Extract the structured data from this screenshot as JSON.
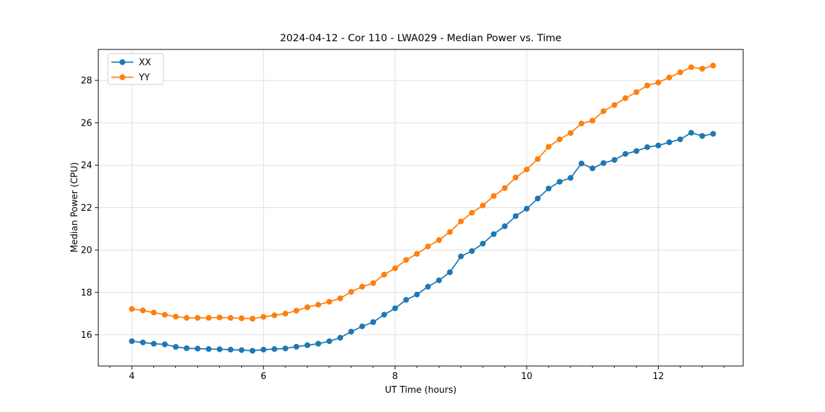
{
  "chart_data": {
    "type": "line",
    "title": "2024-04-12 - Cor 110 - LWA029 - Median Power vs. Time",
    "xlabel": "UT Time (hours)",
    "ylabel": "Median Power (CPU)",
    "xlim": [
      3.49,
      13.29
    ],
    "ylim": [
      14.53,
      29.46
    ],
    "xticks": [
      4,
      6,
      8,
      10,
      12
    ],
    "yticks": [
      16,
      18,
      20,
      22,
      24,
      26,
      28
    ],
    "x_minor_interval": 0.3333,
    "grid": true,
    "legend": {
      "position": "upper left",
      "entries": [
        "XX",
        "YY"
      ]
    },
    "x": [
      4.0,
      4.167,
      4.333,
      4.5,
      4.667,
      4.833,
      5.0,
      5.167,
      5.333,
      5.5,
      5.667,
      5.833,
      6.0,
      6.167,
      6.333,
      6.5,
      6.667,
      6.833,
      7.0,
      7.167,
      7.333,
      7.5,
      7.667,
      7.833,
      8.0,
      8.167,
      8.333,
      8.5,
      8.667,
      8.833,
      9.0,
      9.167,
      9.333,
      9.5,
      9.667,
      9.833,
      10.0,
      10.167,
      10.333,
      10.5,
      10.667,
      10.833,
      11.0,
      11.167,
      11.333,
      11.5,
      11.667,
      11.833,
      12.0,
      12.167,
      12.333,
      12.5,
      12.667,
      12.833
    ],
    "series": [
      {
        "name": "XX",
        "color": "#1f77b4",
        "marker": "circle",
        "values": [
          15.7,
          15.64,
          15.58,
          15.55,
          15.43,
          15.37,
          15.35,
          15.33,
          15.32,
          15.3,
          15.28,
          15.25,
          15.3,
          15.33,
          15.36,
          15.44,
          15.51,
          15.58,
          15.7,
          15.86,
          16.15,
          16.4,
          16.6,
          16.95,
          17.25,
          17.65,
          17.9,
          18.27,
          18.57,
          18.95,
          19.7,
          19.95,
          20.3,
          20.75,
          21.12,
          21.6,
          21.95,
          22.43,
          22.9,
          23.22,
          23.4,
          24.08,
          23.85,
          24.1,
          24.25,
          24.53,
          24.67,
          24.85,
          24.93,
          25.08,
          25.22,
          25.53,
          25.38,
          25.48
        ]
      },
      {
        "name": "YY",
        "color": "#ff7f0e",
        "marker": "circle",
        "values": [
          17.22,
          17.15,
          17.05,
          16.95,
          16.86,
          16.8,
          16.8,
          16.8,
          16.82,
          16.8,
          16.78,
          16.76,
          16.85,
          16.92,
          17.0,
          17.14,
          17.3,
          17.42,
          17.56,
          17.72,
          18.03,
          18.27,
          18.44,
          18.84,
          19.14,
          19.53,
          19.82,
          20.17,
          20.47,
          20.85,
          21.35,
          21.76,
          22.1,
          22.55,
          22.92,
          23.42,
          23.8,
          24.29,
          24.87,
          25.22,
          25.52,
          25.97,
          26.1,
          26.55,
          26.84,
          27.16,
          27.45,
          27.76,
          27.9,
          28.14,
          28.38,
          28.62,
          28.55,
          28.7
        ]
      }
    ],
    "colors": {
      "grid": "#dedede",
      "spine": "#000000",
      "background": "#ffffff",
      "text": "#000000"
    }
  }
}
